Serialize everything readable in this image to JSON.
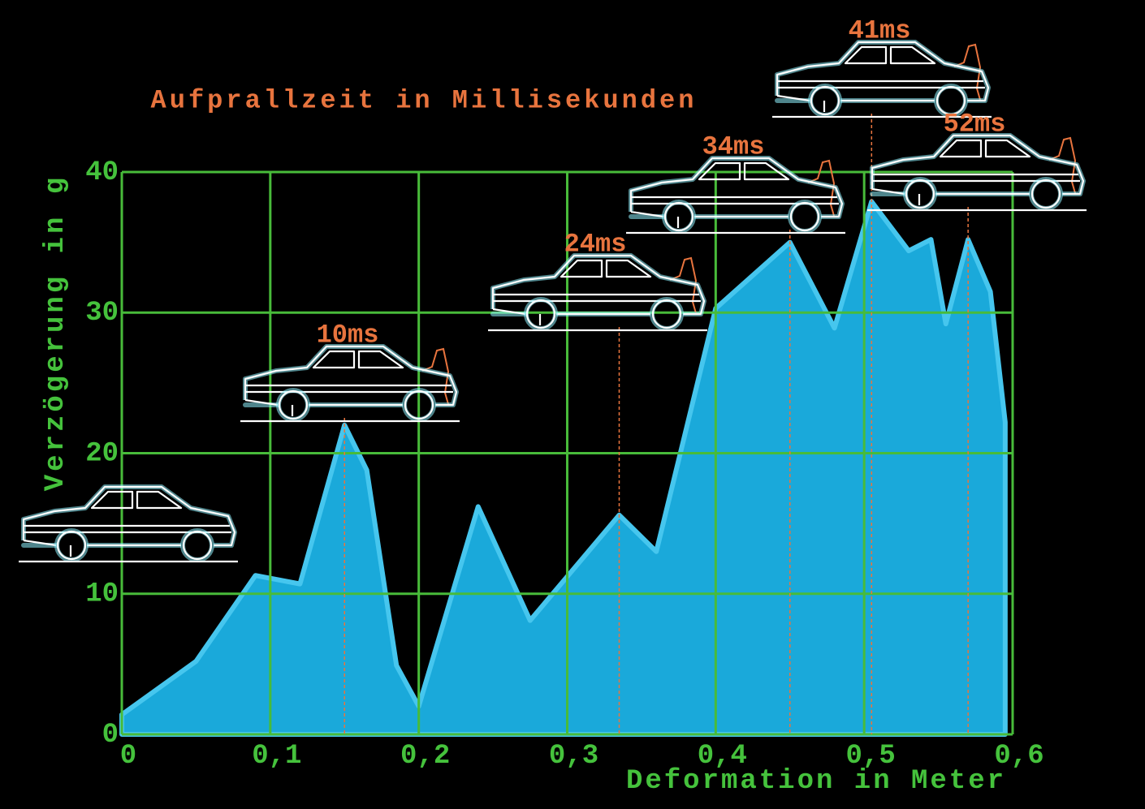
{
  "chart_data": {
    "type": "area",
    "title": "Aufprallzeit in Millisekunden",
    "x_label": "Deformation in Meter",
    "y_label": "Verzögerung in g",
    "x": [
      0,
      0.05,
      0.09,
      0.12,
      0.15,
      0.165,
      0.185,
      0.2,
      0.24,
      0.275,
      0.335,
      0.36,
      0.4,
      0.45,
      0.48,
      0.505,
      0.53,
      0.545,
      0.555,
      0.57,
      0.585,
      0.595
    ],
    "values": [
      1.4,
      5.2,
      11.3,
      10.7,
      22,
      18.8,
      4.9,
      2,
      16.2,
      8.1,
      15.6,
      13,
      30.3,
      35,
      28.9,
      37.9,
      34.4,
      35.2,
      29.2,
      35.2,
      31.5,
      22.2
    ],
    "color": "#1aa9da",
    "xlim": [
      0,
      0.6
    ],
    "ylim": [
      0,
      40
    ],
    "xticks": [
      0,
      {
        "value": 0.1,
        "label": "0,1"
      },
      {
        "value": 0.2,
        "label": "0,2"
      },
      {
        "value": 0.3,
        "label": "0,3"
      },
      {
        "value": 0.4,
        "label": "0,4"
      },
      {
        "value": 0.5,
        "label": "0,5"
      },
      {
        "value": 0.6,
        "label": "0,6"
      }
    ],
    "yticks": [
      0,
      10,
      20,
      30,
      40
    ],
    "grid": true,
    "annotations": [
      {
        "text": "10ms",
        "x": 0.15
      },
      {
        "text": "24ms",
        "x": 0.335
      },
      {
        "text": "34ms",
        "x": 0.45
      },
      {
        "text": "41ms",
        "x": 0.505
      },
      {
        "text": "52ms",
        "x": 0.57
      }
    ]
  }
}
